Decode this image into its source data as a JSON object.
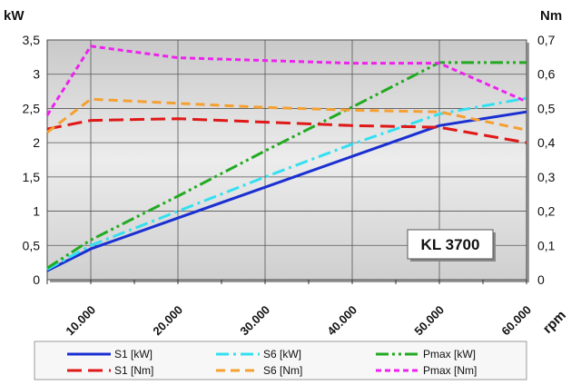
{
  "chart_data": {
    "type": "line",
    "x": [
      5000,
      10000,
      20000,
      30000,
      40000,
      50000,
      60000
    ],
    "x_tick_labels": [
      "10.000",
      "20.000",
      "30.000",
      "40.000",
      "50.000",
      "60.000"
    ],
    "x_ticks": [
      10000,
      20000,
      30000,
      40000,
      50000,
      60000
    ],
    "xlim": [
      5000,
      60000
    ],
    "xlabel": "rpm",
    "y_left": {
      "label": "kW",
      "lim": [
        0,
        3.5
      ],
      "ticks": [
        0,
        0.5,
        1,
        1.5,
        2,
        2.5,
        3,
        3.5
      ],
      "tick_labels": [
        "0",
        "0,5",
        "1",
        "1,5",
        "2",
        "2,5",
        "3",
        "3,5"
      ]
    },
    "y_right": {
      "label": "Nm",
      "lim": [
        0,
        0.7
      ],
      "ticks": [
        0,
        0.1,
        0.2,
        0.3,
        0.4,
        0.5,
        0.6,
        0.7
      ],
      "tick_labels": [
        "0",
        "0,1",
        "0,2",
        "0,3",
        "0,4",
        "0,5",
        "0,6",
        "0,7"
      ]
    },
    "grid": true,
    "legend_position": "bottom",
    "annotation": "KL 3700",
    "series": [
      {
        "name": "S1 [kW]",
        "axis": "left",
        "color": "#1a2fd1",
        "dash": "solid",
        "x": [
          5000,
          10000,
          20000,
          30000,
          40000,
          50000,
          60000
        ],
        "values": [
          0.13,
          0.45,
          0.9,
          1.35,
          1.8,
          2.25,
          2.45
        ]
      },
      {
        "name": "S6 [kW]",
        "axis": "left",
        "color": "#33e0f0",
        "dash": "dashdot",
        "x": [
          5000,
          10000,
          20000,
          30000,
          40000,
          50000,
          60000
        ],
        "values": [
          0.15,
          0.5,
          1.0,
          1.5,
          1.98,
          2.42,
          2.65
        ]
      },
      {
        "name": "Pmax [kW]",
        "axis": "left",
        "color": "#22aa22",
        "dash": "dashdotdot",
        "x": [
          5000,
          10000,
          20000,
          30000,
          40000,
          50000,
          60000
        ],
        "values": [
          0.17,
          0.58,
          1.22,
          1.88,
          2.52,
          3.17,
          3.17
        ]
      },
      {
        "name": "S1 [Nm]",
        "axis": "right",
        "color": "#e01818",
        "dash": "longdash",
        "x": [
          5000,
          10000,
          20000,
          30000,
          40000,
          50000,
          60000
        ],
        "values": [
          0.44,
          0.465,
          0.47,
          0.46,
          0.45,
          0.445,
          0.4
        ]
      },
      {
        "name": "S6 [Nm]",
        "axis": "right",
        "color": "#f5a030",
        "dash": "dash",
        "x": [
          5000,
          10000,
          20000,
          30000,
          40000,
          50000,
          60000
        ],
        "values": [
          0.43,
          0.527,
          0.515,
          0.503,
          0.495,
          0.49,
          0.437
        ]
      },
      {
        "name": "Pmax [Nm]",
        "axis": "right",
        "color": "#ee22ee",
        "dash": "shortdash",
        "x": [
          5000,
          10000,
          20000,
          30000,
          40000,
          50000,
          60000
        ],
        "values": [
          0.48,
          0.682,
          0.648,
          0.64,
          0.632,
          0.632,
          0.52
        ]
      }
    ]
  }
}
